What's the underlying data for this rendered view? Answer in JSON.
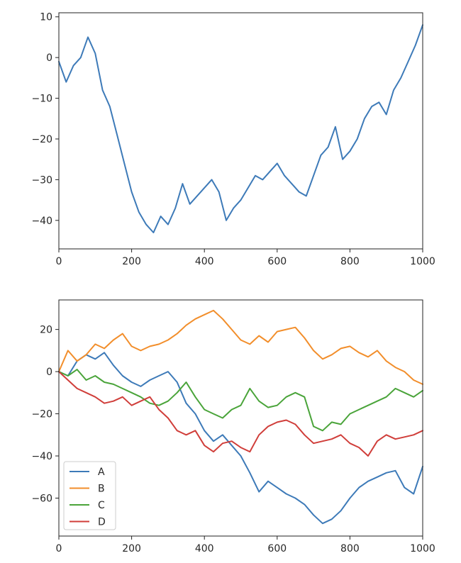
{
  "chart_data": [
    {
      "type": "line",
      "title": "",
      "xlabel": "",
      "ylabel": "",
      "xlim": [
        0,
        1000
      ],
      "ylim": [
        -47,
        11
      ],
      "xticks": [
        0,
        200,
        400,
        600,
        800,
        1000
      ],
      "yticks": [
        10,
        0,
        -10,
        -20,
        -30,
        -40
      ],
      "grid": false,
      "series": [
        {
          "color": "#3d7ab8",
          "x": [
            0,
            20,
            40,
            60,
            80,
            100,
            120,
            140,
            160,
            180,
            200,
            220,
            240,
            260,
            280,
            300,
            320,
            340,
            360,
            380,
            400,
            420,
            440,
            460,
            480,
            500,
            520,
            540,
            560,
            580,
            600,
            620,
            640,
            660,
            680,
            700,
            720,
            740,
            760,
            780,
            800,
            820,
            840,
            860,
            880,
            900,
            920,
            940,
            960,
            980,
            1000
          ],
          "y": [
            -1,
            -6,
            -2,
            0,
            5,
            1,
            -8,
            -12,
            -19,
            -26,
            -33,
            -38,
            -41,
            -43,
            -39,
            -41,
            -37,
            -31,
            -36,
            -34,
            -32,
            -30,
            -33,
            -40,
            -37,
            -35,
            -32,
            -29,
            -30,
            -28,
            -26,
            -29,
            -31,
            -33,
            -34,
            -29,
            -24,
            -22,
            -17,
            -25,
            -23,
            -20,
            -15,
            -12,
            -11,
            -14,
            -8,
            -5,
            -1,
            3,
            8
          ]
        }
      ]
    },
    {
      "type": "line",
      "title": "",
      "xlabel": "",
      "ylabel": "",
      "xlim": [
        0,
        1000
      ],
      "ylim": [
        -78,
        34
      ],
      "xticks": [
        0,
        200,
        400,
        600,
        800,
        1000
      ],
      "yticks": [
        20,
        0,
        -20,
        -40,
        -60
      ],
      "grid": false,
      "legend": "lower-left",
      "series": [
        {
          "name": "A",
          "color": "#3d7ab8",
          "x": [
            0,
            25,
            50,
            75,
            100,
            125,
            150,
            175,
            200,
            225,
            250,
            275,
            300,
            325,
            350,
            375,
            400,
            425,
            450,
            475,
            500,
            525,
            550,
            575,
            600,
            625,
            650,
            675,
            700,
            725,
            750,
            775,
            800,
            825,
            850,
            875,
            900,
            925,
            950,
            975,
            1000
          ],
          "y": [
            0,
            -2,
            5,
            8,
            6,
            9,
            3,
            -2,
            -5,
            -7,
            -4,
            -2,
            0,
            -5,
            -15,
            -20,
            -28,
            -33,
            -30,
            -35,
            -40,
            -48,
            -57,
            -52,
            -55,
            -58,
            -60,
            -63,
            -68,
            -72,
            -70,
            -66,
            -60,
            -55,
            -52,
            -50,
            -48,
            -47,
            -55,
            -58,
            -45
          ]
        },
        {
          "name": "B",
          "color": "#f28e2b",
          "x": [
            0,
            25,
            50,
            75,
            100,
            125,
            150,
            175,
            200,
            225,
            250,
            275,
            300,
            325,
            350,
            375,
            400,
            425,
            450,
            475,
            500,
            525,
            550,
            575,
            600,
            625,
            650,
            675,
            700,
            725,
            750,
            775,
            800,
            825,
            850,
            875,
            900,
            925,
            950,
            975,
            1000
          ],
          "y": [
            0,
            10,
            5,
            8,
            13,
            11,
            15,
            18,
            12,
            10,
            12,
            13,
            15,
            18,
            22,
            25,
            27,
            29,
            25,
            20,
            15,
            13,
            17,
            14,
            19,
            20,
            21,
            16,
            10,
            6,
            8,
            11,
            12,
            9,
            7,
            10,
            5,
            2,
            0,
            -4,
            -6
          ]
        },
        {
          "name": "C",
          "color": "#4aa43a",
          "x": [
            0,
            25,
            50,
            75,
            100,
            125,
            150,
            175,
            200,
            225,
            250,
            275,
            300,
            325,
            350,
            375,
            400,
            425,
            450,
            475,
            500,
            525,
            550,
            575,
            600,
            625,
            650,
            675,
            700,
            725,
            750,
            775,
            800,
            825,
            850,
            875,
            900,
            925,
            950,
            975,
            1000
          ],
          "y": [
            0,
            -2,
            1,
            -4,
            -2,
            -5,
            -6,
            -8,
            -10,
            -12,
            -15,
            -16,
            -14,
            -10,
            -5,
            -12,
            -18,
            -20,
            -22,
            -18,
            -16,
            -8,
            -14,
            -17,
            -16,
            -12,
            -10,
            -12,
            -26,
            -28,
            -24,
            -25,
            -20,
            -18,
            -16,
            -14,
            -12,
            -8,
            -10,
            -12,
            -9
          ]
        },
        {
          "name": "D",
          "color": "#d03e3a",
          "x": [
            0,
            25,
            50,
            75,
            100,
            125,
            150,
            175,
            200,
            225,
            250,
            275,
            300,
            325,
            350,
            375,
            400,
            425,
            450,
            475,
            500,
            525,
            550,
            575,
            600,
            625,
            650,
            675,
            700,
            725,
            750,
            775,
            800,
            825,
            850,
            875,
            900,
            925,
            950,
            975,
            1000
          ],
          "y": [
            0,
            -4,
            -8,
            -10,
            -12,
            -15,
            -14,
            -12,
            -16,
            -14,
            -12,
            -18,
            -22,
            -28,
            -30,
            -28,
            -35,
            -38,
            -34,
            -33,
            -36,
            -38,
            -30,
            -26,
            -24,
            -23,
            -25,
            -30,
            -34,
            -33,
            -32,
            -30,
            -34,
            -36,
            -40,
            -33,
            -30,
            -32,
            -31,
            -30,
            -28
          ]
        }
      ]
    }
  ]
}
